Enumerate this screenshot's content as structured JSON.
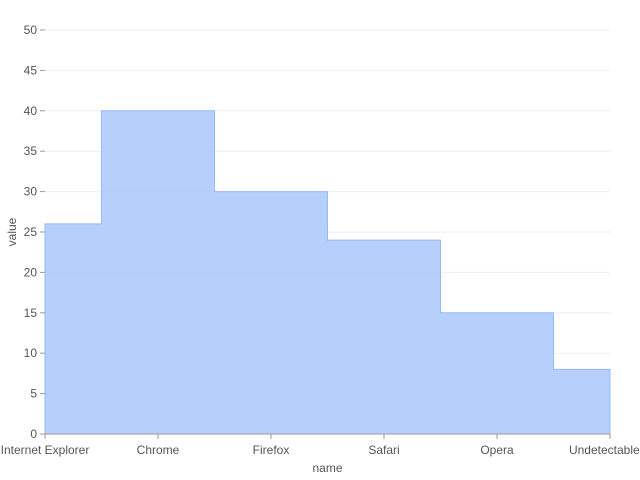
{
  "chart_data": {
    "type": "area",
    "step": "middle",
    "categories": [
      "Internet Explorer",
      "Chrome",
      "Firefox",
      "Safari",
      "Opera",
      "Undetectable"
    ],
    "values": [
      26,
      40,
      30,
      24,
      15,
      8
    ],
    "xlabel": "name",
    "ylabel": "value",
    "ylim": [
      0,
      50
    ],
    "yticks": [
      0,
      5,
      10,
      15,
      20,
      25,
      30,
      35,
      40,
      45,
      50
    ],
    "grid": true,
    "colors": {
      "fill": "#aac8fa",
      "stroke": "#96b9f8",
      "grid": "#eeeeee",
      "axis": "#999999",
      "text": "#555555"
    }
  }
}
